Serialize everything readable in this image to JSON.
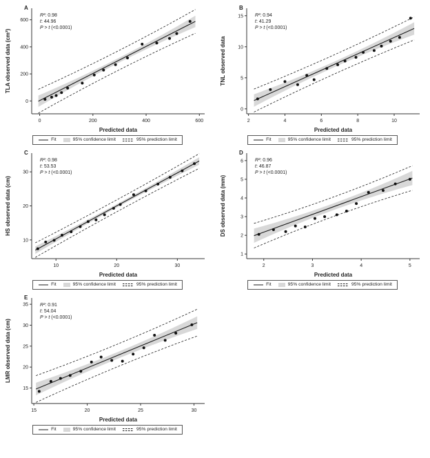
{
  "style": {
    "band_color": "#d8d8d8",
    "line_color": "#1a1a1a",
    "point_color": "#111111",
    "axis_color": "#333333",
    "text_color": "#222222"
  },
  "legend": {
    "fit": "Fit",
    "conf": "95% confidence limit",
    "pred": "95% prediction limit"
  },
  "chart_data": [
    {
      "type": "scatter",
      "panel": "A",
      "xlabel": "Predicted data",
      "ylabel": "TLA observed data (cm²)",
      "stats": [
        {
          "label": "R²",
          "value": ": 0.98"
        },
        {
          "label": "t",
          "value": ": 44.96"
        },
        {
          "label": "P > t",
          "value": " (<0.0001)"
        }
      ],
      "xlim": [
        -30,
        620
      ],
      "ylim": [
        -95,
        685
      ],
      "xticks": [
        0,
        200,
        400,
        600
      ],
      "yticks": [
        0,
        200,
        400,
        600
      ],
      "fit": {
        "slope": 1.0,
        "intercept": 3,
        "x0": -5,
        "x1": 585
      },
      "conf": {
        "mid": 18,
        "end": 42
      },
      "pred": {
        "mid": 72,
        "end": 88
      },
      "points": [
        [
          20,
          12
        ],
        [
          45,
          28
        ],
        [
          62,
          40
        ],
        [
          82,
          62
        ],
        [
          105,
          95
        ],
        [
          160,
          132
        ],
        [
          205,
          192
        ],
        [
          240,
          228
        ],
        [
          285,
          268
        ],
        [
          330,
          318
        ],
        [
          385,
          420
        ],
        [
          440,
          428
        ],
        [
          488,
          462
        ],
        [
          515,
          498
        ],
        [
          565,
          588
        ]
      ]
    },
    {
      "type": "scatter",
      "panel": "B",
      "xlabel": "Predicted data",
      "ylabel": "TNL observed data",
      "stats": [
        {
          "label": "R²",
          "value": ": 0.94"
        },
        {
          "label": "t",
          "value": ": 41.29"
        },
        {
          "label": "P > t",
          "value": " (<0.0001)"
        }
      ],
      "xlim": [
        1.9,
        11.4
      ],
      "ylim": [
        -0.8,
        16.2
      ],
      "xticks": [
        2,
        4,
        6,
        8,
        10
      ],
      "yticks": [
        0,
        5,
        10,
        15
      ],
      "fit": {
        "slope": 1.32,
        "intercept": -1.7,
        "x0": 2.3,
        "x1": 11.1
      },
      "conf": {
        "mid": 0.45,
        "end": 1.0
      },
      "pred": {
        "mid": 1.55,
        "end": 1.85
      },
      "points": [
        [
          2.5,
          1.6
        ],
        [
          3.2,
          3.1
        ],
        [
          4.0,
          4.4
        ],
        [
          4.7,
          3.9
        ],
        [
          5.2,
          5.4
        ],
        [
          5.6,
          4.7
        ],
        [
          6.3,
          6.5
        ],
        [
          6.9,
          7.1
        ],
        [
          7.3,
          7.7
        ],
        [
          7.9,
          8.3
        ],
        [
          8.3,
          9.1
        ],
        [
          8.9,
          9.4
        ],
        [
          9.3,
          10.1
        ],
        [
          9.8,
          10.9
        ],
        [
          10.3,
          11.5
        ],
        [
          10.9,
          14.6
        ]
      ]
    },
    {
      "type": "scatter",
      "panel": "C",
      "xlabel": "Predicted data",
      "ylabel": "HS observed data (cm)",
      "stats": [
        {
          "label": "R²",
          "value": ": 0.98"
        },
        {
          "label": "t",
          "value": ": 53.53"
        },
        {
          "label": "P > t",
          "value": " (<0.0001)"
        }
      ],
      "xlim": [
        6,
        34.5
      ],
      "ylim": [
        4.5,
        35.5
      ],
      "xticks": [
        10,
        20,
        30
      ],
      "yticks": [
        10,
        20,
        30
      ],
      "fit": {
        "slope": 0.97,
        "intercept": 0.6,
        "x0": 6.6,
        "x1": 33.6
      },
      "conf": {
        "mid": 0.5,
        "end": 1.1
      },
      "pred": {
        "mid": 1.75,
        "end": 2.15
      },
      "points": [
        [
          7,
          7.4
        ],
        [
          8.3,
          9.4
        ],
        [
          9.7,
          9.9
        ],
        [
          11,
          11.4
        ],
        [
          12.5,
          12.4
        ],
        [
          14,
          13.9
        ],
        [
          15.3,
          15.4
        ],
        [
          16.6,
          15.9
        ],
        [
          18,
          17.4
        ],
        [
          19.5,
          19.3
        ],
        [
          20.6,
          20.4
        ],
        [
          22.8,
          23.3
        ],
        [
          24.8,
          24.4
        ],
        [
          26.8,
          26.4
        ],
        [
          28.8,
          28.4
        ],
        [
          30.8,
          30.3
        ],
        [
          32.8,
          32.4
        ]
      ]
    },
    {
      "type": "scatter",
      "panel": "D",
      "xlabel": "Predicted data",
      "ylabel": "DS observed data (mm)",
      "stats": [
        {
          "label": "R²",
          "value": ": 0.96"
        },
        {
          "label": "t",
          "value": ": 46.87"
        },
        {
          "label": "P > t",
          "value": " (<0.0001)"
        }
      ],
      "xlim": [
        1.65,
        5.2
      ],
      "ylim": [
        0.75,
        6.4
      ],
      "xticks": [
        2,
        3,
        4,
        5
      ],
      "yticks": [
        1,
        2,
        3,
        4,
        5,
        6
      ],
      "fit": {
        "slope": 0.95,
        "intercept": 0.27,
        "x0": 1.8,
        "x1": 5.05
      },
      "conf": {
        "mid": 0.18,
        "end": 0.38
      },
      "pred": {
        "mid": 0.52,
        "end": 0.66
      },
      "points": [
        [
          1.9,
          2.05
        ],
        [
          2.2,
          2.3
        ],
        [
          2.45,
          2.2
        ],
        [
          2.65,
          2.5
        ],
        [
          2.85,
          2.45
        ],
        [
          3.05,
          2.9
        ],
        [
          3.25,
          3.0
        ],
        [
          3.5,
          3.1
        ],
        [
          3.7,
          3.3
        ],
        [
          3.9,
          3.7
        ],
        [
          4.15,
          4.3
        ],
        [
          4.45,
          4.4
        ],
        [
          4.7,
          4.75
        ],
        [
          5.0,
          5.0
        ]
      ]
    },
    {
      "type": "scatter",
      "panel": "E",
      "xlabel": "Predicted data",
      "ylabel": "LMR observed data (cm)",
      "stats": [
        {
          "label": "R²",
          "value": ": 0.91"
        },
        {
          "label": "t",
          "value": ": 54.04"
        },
        {
          "label": "P > t",
          "value": " (<0.0001)"
        }
      ],
      "xlim": [
        14.8,
        31
      ],
      "ylim": [
        11.3,
        36.5
      ],
      "xticks": [
        15,
        20,
        25,
        30
      ],
      "yticks": [
        15,
        20,
        25,
        30,
        35
      ],
      "fit": {
        "slope": 1.05,
        "intercept": -1.2,
        "x0": 15.2,
        "x1": 30.3
      },
      "conf": {
        "mid": 0.8,
        "end": 1.5
      },
      "pred": {
        "mid": 2.7,
        "end": 3.2
      },
      "points": [
        [
          15.5,
          14.2
        ],
        [
          16.6,
          16.6
        ],
        [
          17.5,
          17.3
        ],
        [
          18.4,
          18.0
        ],
        [
          19.4,
          19.0
        ],
        [
          20.4,
          21.2
        ],
        [
          21.3,
          22.4
        ],
        [
          22.3,
          21.6
        ],
        [
          23.3,
          21.4
        ],
        [
          24.3,
          23.1
        ],
        [
          25.3,
          24.6
        ],
        [
          26.3,
          27.6
        ],
        [
          27.3,
          26.4
        ],
        [
          28.3,
          28.1
        ],
        [
          29.8,
          30.1
        ]
      ]
    }
  ]
}
